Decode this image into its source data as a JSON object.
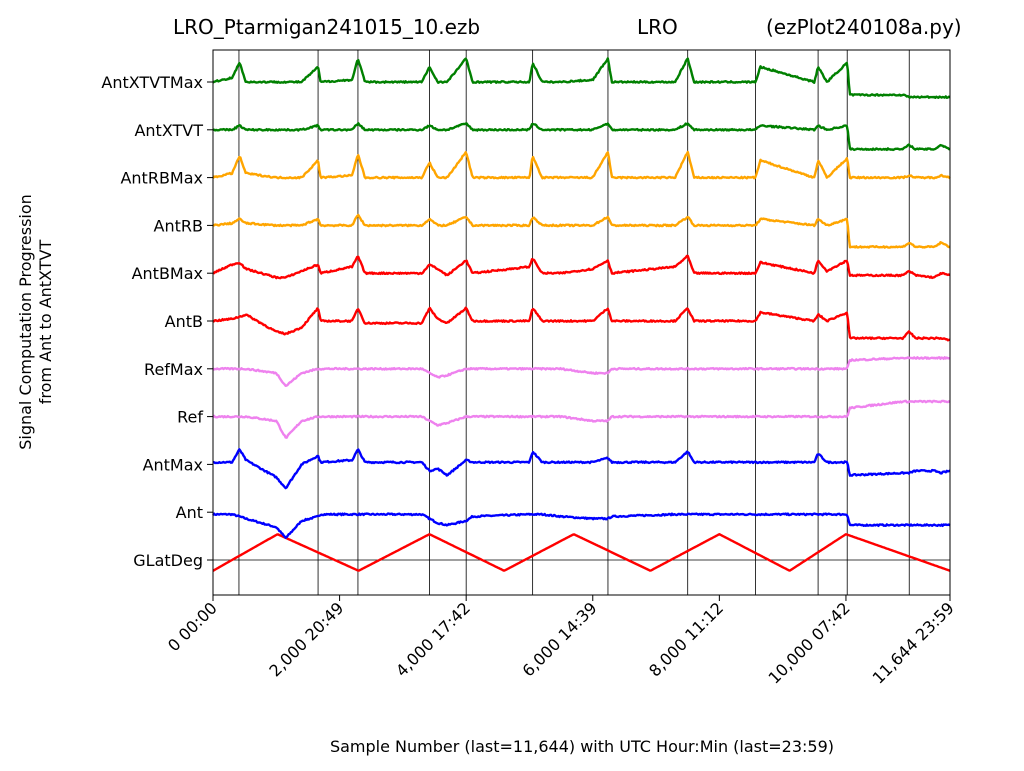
{
  "chart_data": {
    "type": "line",
    "title_left": "LRO_Ptarmigan241015_10.ezb",
    "title_center": "LRO",
    "title_right": "(ezPlot240108a.py)",
    "xlabel": "Sample Number (last=11,644) with UTC Hour:Min (last=23:59)",
    "ylabel_line1": "Signal Computation Progression",
    "ylabel_line2": "from Ant to AntXTVT",
    "xlim": [
      0,
      11644
    ],
    "x_ticks": [
      0,
      2000,
      4000,
      6000,
      8000,
      10000,
      11644
    ],
    "x_tick_labels": [
      "0  00:00",
      "2,000  20:49",
      "4,000  17:42",
      "6,000  14:39",
      "8,000  11:12",
      "10,000  07:42",
      "11,644  23:59"
    ],
    "vlines": [
      410,
      1660,
      2290,
      3420,
      4000,
      5050,
      6240,
      7500,
      8570,
      9560,
      10020,
      11000
    ],
    "categories": [
      "GLatDeg",
      "Ant",
      "AntMax",
      "Ref",
      "RefMax",
      "AntB",
      "AntBMax",
      "AntRB",
      "AntRBMax",
      "AntXTVT",
      "AntXTVTMax"
    ],
    "series": [
      {
        "name": "GLatDeg",
        "color": "#ff0000"
      },
      {
        "name": "Ant",
        "color": "#0000ff"
      },
      {
        "name": "AntMax",
        "color": "#0000ff"
      },
      {
        "name": "Ref",
        "color": "#ee82ee"
      },
      {
        "name": "RefMax",
        "color": "#ee82ee"
      },
      {
        "name": "AntB",
        "color": "#ff0000"
      },
      {
        "name": "AntBMax",
        "color": "#ff0000"
      },
      {
        "name": "AntRB",
        "color": "#ffa500"
      },
      {
        "name": "AntRBMax",
        "color": "#ffa500"
      },
      {
        "name": "AntXTVT",
        "color": "#008000"
      },
      {
        "name": "AntXTVTMax",
        "color": "#008000"
      }
    ],
    "glat_x": [
      0,
      1020,
      2300,
      3420,
      4600,
      5700,
      6910,
      8000,
      9110,
      10000,
      11644
    ],
    "glat_y": [
      -0.25,
      0.6,
      -0.25,
      0.6,
      -0.25,
      0.6,
      -0.25,
      0.6,
      -0.25,
      0.6,
      -0.25
    ],
    "profile_x": [
      0,
      300,
      420,
      520,
      1000,
      1150,
      1400,
      1660,
      1700,
      2200,
      2290,
      2400,
      3300,
      3420,
      3550,
      3700,
      4000,
      4100,
      5000,
      5050,
      5200,
      5500,
      6000,
      6240,
      6300,
      7300,
      7500,
      7600,
      8570,
      8650,
      9500,
      9560,
      9700,
      10020,
      10060,
      10900,
      11000,
      11100,
      11400,
      11500,
      11644
    ],
    "profiles": [
      [
        -0.05,
        -0.05,
        -0.1,
        -0.15,
        -0.35,
        -0.6,
        -0.2,
        -0.1,
        -0.05,
        -0.05,
        -0.05,
        -0.05,
        -0.05,
        -0.15,
        -0.25,
        -0.3,
        -0.2,
        -0.1,
        -0.05,
        -0.05,
        -0.05,
        -0.1,
        -0.15,
        -0.15,
        -0.1,
        -0.05,
        -0.05,
        -0.05,
        -0.05,
        -0.05,
        -0.05,
        -0.05,
        -0.05,
        -0.05,
        -0.3,
        -0.3,
        -0.3,
        -0.3,
        -0.3,
        -0.3,
        -0.3
      ],
      [
        0.05,
        0.05,
        0.35,
        0.1,
        -0.3,
        -0.55,
        0.0,
        0.2,
        0.05,
        0.1,
        0.35,
        0.05,
        0.05,
        -0.15,
        -0.1,
        -0.25,
        0.1,
        0.05,
        0.05,
        0.3,
        0.05,
        0.05,
        0.05,
        0.15,
        0.05,
        0.05,
        0.3,
        0.05,
        0.05,
        0.05,
        0.05,
        0.25,
        0.05,
        0.05,
        -0.25,
        -0.2,
        -0.2,
        -0.15,
        -0.15,
        -0.2,
        -0.15
      ],
      [
        0.0,
        0.0,
        0.0,
        0.0,
        -0.1,
        -0.5,
        -0.1,
        0.0,
        0.0,
        0.0,
        0.0,
        0.0,
        0.0,
        -0.1,
        -0.2,
        -0.15,
        0.0,
        0.0,
        0.0,
        0.0,
        0.0,
        0.0,
        -0.1,
        -0.1,
        0.0,
        0.0,
        0.0,
        0.0,
        0.0,
        0.0,
        0.0,
        0.0,
        0.0,
        0.0,
        0.2,
        0.35,
        0.35,
        0.35,
        0.35,
        0.35,
        0.35
      ],
      [
        0.0,
        0.0,
        0.0,
        0.0,
        -0.1,
        -0.4,
        -0.1,
        0.0,
        0.0,
        0.0,
        0.0,
        0.0,
        0.0,
        -0.1,
        -0.2,
        -0.15,
        0.0,
        0.0,
        0.0,
        0.0,
        0.0,
        0.0,
        -0.1,
        -0.1,
        0.0,
        0.0,
        0.0,
        0.0,
        0.0,
        0.0,
        0.0,
        0.0,
        0.0,
        0.0,
        0.2,
        0.25,
        0.25,
        0.25,
        0.25,
        0.25,
        0.25
      ],
      [
        0.0,
        0.05,
        0.1,
        0.15,
        -0.25,
        -0.3,
        -0.15,
        0.3,
        0.0,
        0.0,
        0.3,
        -0.05,
        -0.05,
        0.3,
        0.05,
        -0.05,
        0.3,
        0.0,
        0.0,
        0.3,
        0.0,
        0.0,
        0.0,
        0.3,
        0.0,
        0.0,
        0.3,
        0.0,
        0.0,
        0.2,
        0.0,
        0.15,
        0.0,
        0.2,
        -0.4,
        -0.4,
        -0.25,
        -0.4,
        -0.4,
        -0.4,
        -0.45
      ],
      [
        0.0,
        0.2,
        0.25,
        0.1,
        -0.1,
        -0.1,
        0.05,
        0.2,
        0.0,
        0.15,
        0.4,
        0.0,
        0.0,
        0.2,
        0.1,
        -0.05,
        0.3,
        0.0,
        0.15,
        0.35,
        0.0,
        0.0,
        0.1,
        0.3,
        0.0,
        0.15,
        0.4,
        0.0,
        0.0,
        0.25,
        0.0,
        0.3,
        0.05,
        0.3,
        -0.05,
        -0.05,
        0.05,
        -0.05,
        -0.1,
        0.0,
        -0.05
      ],
      [
        0.0,
        0.05,
        0.15,
        0.05,
        0.0,
        0.0,
        0.0,
        0.15,
        0.0,
        0.0,
        0.25,
        0.0,
        0.0,
        0.15,
        0.0,
        0.0,
        0.2,
        0.0,
        0.0,
        0.2,
        0.0,
        0.0,
        0.0,
        0.2,
        0.0,
        0.0,
        0.2,
        0.0,
        0.0,
        0.15,
        0.0,
        0.15,
        0.0,
        0.15,
        -0.5,
        -0.5,
        -0.4,
        -0.5,
        -0.5,
        -0.4,
        -0.5
      ],
      [
        0.0,
        0.1,
        0.5,
        0.1,
        0.0,
        0.0,
        0.0,
        0.4,
        0.0,
        0.05,
        0.55,
        0.0,
        0.0,
        0.35,
        0.0,
        0.0,
        0.6,
        0.0,
        0.0,
        0.5,
        0.0,
        0.0,
        0.0,
        0.6,
        0.0,
        0.0,
        0.6,
        0.0,
        0.0,
        0.4,
        0.0,
        0.4,
        0.0,
        0.45,
        0.0,
        0.0,
        0.05,
        0.0,
        0.0,
        0.05,
        0.0
      ],
      [
        0.0,
        0.0,
        0.1,
        0.0,
        0.0,
        0.0,
        0.0,
        0.1,
        0.0,
        0.0,
        0.15,
        0.0,
        0.0,
        0.1,
        0.0,
        0.0,
        0.15,
        0.0,
        0.0,
        0.15,
        0.0,
        0.0,
        0.0,
        0.15,
        0.0,
        0.0,
        0.15,
        0.0,
        0.0,
        0.1,
        0.0,
        0.1,
        0.0,
        0.1,
        -0.45,
        -0.45,
        -0.35,
        -0.45,
        -0.45,
        -0.35,
        -0.45
      ],
      [
        0.0,
        0.1,
        0.45,
        0.0,
        0.0,
        0.0,
        0.0,
        0.35,
        0.0,
        0.05,
        0.55,
        0.0,
        0.0,
        0.35,
        0.0,
        0.0,
        0.55,
        0.0,
        0.0,
        0.45,
        0.0,
        0.0,
        0.05,
        0.55,
        0.0,
        0.0,
        0.55,
        0.0,
        0.0,
        0.35,
        0.0,
        0.35,
        0.0,
        0.45,
        -0.3,
        -0.3,
        -0.35,
        -0.35,
        -0.35,
        -0.35,
        -0.35
      ]
    ]
  }
}
